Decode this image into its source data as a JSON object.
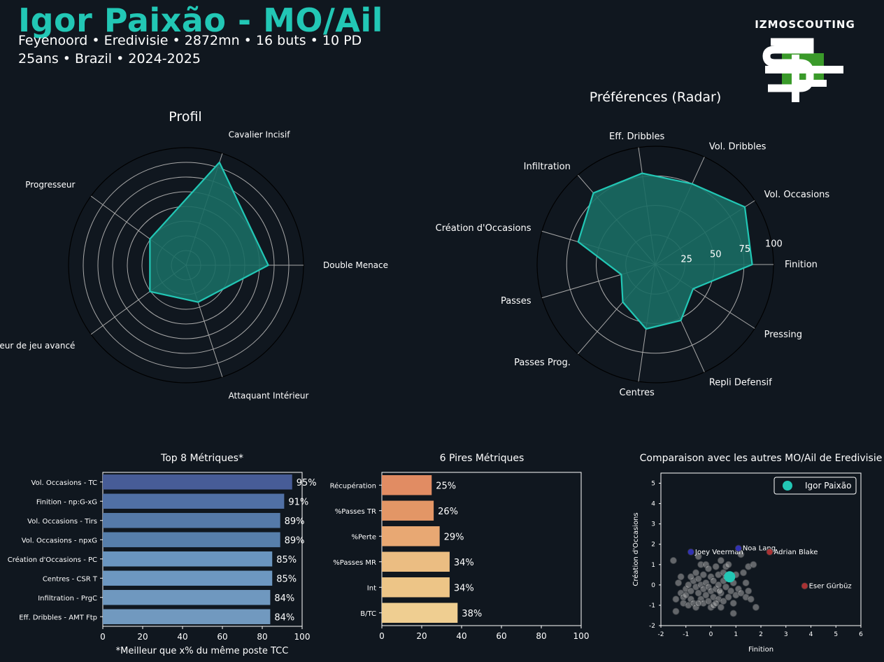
{
  "header": {
    "title": "Igor Paixão - MO/Ail",
    "line1": "Feyenoord • Eredivisie • 2872mn • 16 buts • 10 PD",
    "line2": "25ans • Brazil • 2024-2025",
    "logo_text": "IZMOSCOUTING"
  },
  "colors": {
    "accent": "#22c7b5",
    "background": "#10171f",
    "radar_fill": "#1a6b63",
    "scatter_other": "#b5b5b5",
    "highlight_blue": "#3a3ad6",
    "highlight_red": "#d03a3a",
    "logo_green": "#3a9a2a"
  },
  "chart_data": [
    {
      "type": "radar",
      "title": "Profil",
      "axes": [
        "Double Menace",
        "Cavalier Incisif",
        "Progresseur",
        "Meneur de jeu avancé",
        "Attaquant Intérieur"
      ],
      "values": [
        70,
        92,
        38,
        38,
        33
      ],
      "rmax": 100,
      "rings": 7
    },
    {
      "type": "radar",
      "title": "Préférences (Radar)",
      "axes": [
        "Finition",
        "Vol. Occasions",
        "Vol. Dribbles",
        "Eff. Dribbles",
        "Infiltration",
        "Création d'Occasions",
        "Passes",
        "Passes Prog.",
        "Centres",
        "Repli Defensif",
        "Pressing"
      ],
      "values": [
        82,
        90,
        75,
        78,
        80,
        68,
        30,
        42,
        55,
        52,
        38
      ],
      "rmax": 100,
      "rticks": [
        25,
        50,
        75,
        100
      ]
    },
    {
      "type": "bar",
      "orientation": "horizontal",
      "title": "Top 8 Métriques*",
      "xlabel": "*Meilleur que x% du même poste TCC",
      "xlim": [
        0,
        100
      ],
      "xticks": [
        0,
        20,
        40,
        60,
        80,
        100
      ],
      "categories": [
        "Vol. Occasions - TC",
        "Finition - np:G-xG",
        "Vol. Occasions - Tirs",
        "Vol. Occasions - npxG",
        "Création d'Occasions - PC",
        "Centres - CSR T",
        "Infiltration - PrgC",
        "Eff. Dribbles - AMT Ftp"
      ],
      "values": [
        95,
        91,
        89,
        89,
        85,
        85,
        84,
        84
      ],
      "value_labels": [
        "95%",
        "91%",
        "89%",
        "89%",
        "85%",
        "85%",
        "84%",
        "84%"
      ],
      "colors": [
        "#475c97",
        "#5070a5",
        "#557aa9",
        "#577fab",
        "#6a95bf",
        "#6d97c0",
        "#6f98bf",
        "#7199bf"
      ]
    },
    {
      "type": "bar",
      "orientation": "horizontal",
      "title": "6 Pires Métriques",
      "xlim": [
        0,
        100
      ],
      "xticks": [
        0,
        20,
        40,
        60,
        80,
        100
      ],
      "categories": [
        "Récupération",
        "%Passes TR",
        "%Perte",
        "%Passes MR",
        "Int",
        "B/TC"
      ],
      "values": [
        25,
        26,
        29,
        34,
        34,
        38
      ],
      "value_labels": [
        "25%",
        "26%",
        "29%",
        "34%",
        "34%",
        "38%"
      ],
      "colors": [
        "#e18c63",
        "#e39666",
        "#e8a873",
        "#ebbd82",
        "#edc587",
        "#efce91"
      ]
    },
    {
      "type": "scatter",
      "title": "Comparaison avec les autres MO/Ail de Eredivisie",
      "xlabel": "Finition",
      "ylabel": "Création d'Occasions",
      "xlim": [
        -2,
        6
      ],
      "ylim": [
        -2,
        5.5
      ],
      "xticks": [
        -2,
        -1,
        0,
        1,
        2,
        3,
        4,
        5,
        6
      ],
      "yticks": [
        -2,
        -1,
        0,
        1,
        2,
        3,
        4,
        5
      ],
      "legend": "Igor Paixão",
      "legend_position": "top-right",
      "highlight": {
        "name": "Igor Paixão",
        "x": 0.75,
        "y": 0.4
      },
      "labeled": [
        {
          "name": "Joey Veerman",
          "x": -0.8,
          "y": 1.62,
          "color": "blue"
        },
        {
          "name": "Noa Lang",
          "x": 1.1,
          "y": 1.8,
          "color": "blue"
        },
        {
          "name": "Adrian Blake",
          "x": 2.35,
          "y": 1.62,
          "color": "red"
        },
        {
          "name": "Eser Gürbüz",
          "x": 3.75,
          "y": -0.05,
          "color": "red"
        }
      ],
      "others": [
        [
          -1.5,
          1.2
        ],
        [
          -1.4,
          -1.3
        ],
        [
          -1.4,
          -0.7
        ],
        [
          -1.3,
          0.1
        ],
        [
          -1.2,
          -0.4
        ],
        [
          -1.2,
          0.4
        ],
        [
          -1.1,
          -0.6
        ],
        [
          -1.1,
          -0.9
        ],
        [
          -1.0,
          -0.2
        ],
        [
          -1.0,
          -0.5
        ],
        [
          -0.9,
          0.0
        ],
        [
          -0.9,
          -1.0
        ],
        [
          -0.8,
          -0.3
        ],
        [
          -0.8,
          -0.7
        ],
        [
          -0.7,
          0.2
        ],
        [
          -0.7,
          -0.9
        ],
        [
          -0.6,
          0.6
        ],
        [
          -0.6,
          -0.1
        ],
        [
          -0.6,
          -1.1
        ],
        [
          -0.5,
          1.4
        ],
        [
          -0.5,
          0.3
        ],
        [
          -0.5,
          -0.4
        ],
        [
          -0.4,
          0.0
        ],
        [
          -0.4,
          1.0
        ],
        [
          -0.4,
          -0.7
        ],
        [
          -0.3,
          0.5
        ],
        [
          -0.3,
          -0.2
        ],
        [
          -0.3,
          -0.9
        ],
        [
          -0.2,
          1.0
        ],
        [
          -0.2,
          0.1
        ],
        [
          -0.2,
          -0.5
        ],
        [
          -0.1,
          0.8
        ],
        [
          -0.1,
          -0.1
        ],
        [
          -0.1,
          -0.8
        ],
        [
          0.0,
          0.4
        ],
        [
          0.0,
          -0.3
        ],
        [
          0.0,
          -1.1
        ],
        [
          0.1,
          0.2
        ],
        [
          0.1,
          -0.6
        ],
        [
          0.1,
          -1.0
        ],
        [
          0.2,
          0.9
        ],
        [
          0.2,
          -0.2
        ],
        [
          0.3,
          0.5
        ],
        [
          0.3,
          0.0
        ],
        [
          0.3,
          -0.7
        ],
        [
          0.4,
          1.2
        ],
        [
          0.4,
          -0.4
        ],
        [
          0.4,
          -1.1
        ],
        [
          0.5,
          0.6
        ],
        [
          0.5,
          0.2
        ],
        [
          0.5,
          -0.8
        ],
        [
          0.6,
          0.9
        ],
        [
          0.6,
          -0.1
        ],
        [
          0.7,
          1.0
        ],
        [
          0.7,
          -0.6
        ],
        [
          0.8,
          0.3
        ],
        [
          0.8,
          -0.3
        ],
        [
          0.9,
          0.1
        ],
        [
          0.9,
          -0.9
        ],
        [
          1.0,
          0.5
        ],
        [
          1.0,
          -0.5
        ],
        [
          1.1,
          -0.2
        ],
        [
          1.2,
          1.5
        ],
        [
          1.2,
          -0.4
        ],
        [
          1.3,
          0.6
        ],
        [
          1.4,
          0.1
        ],
        [
          1.4,
          -0.6
        ],
        [
          1.5,
          0.9
        ],
        [
          1.5,
          -0.3
        ],
        [
          1.6,
          -0.7
        ],
        [
          1.7,
          1.0
        ],
        [
          1.8,
          -1.1
        ],
        [
          -0.5,
          -0.9
        ],
        [
          0.2,
          -0.9
        ],
        [
          0.9,
          -1.4
        ],
        [
          -0.8,
          0.4
        ],
        [
          0.6,
          0.4
        ],
        [
          0.35,
          -0.3
        ]
      ]
    }
  ]
}
